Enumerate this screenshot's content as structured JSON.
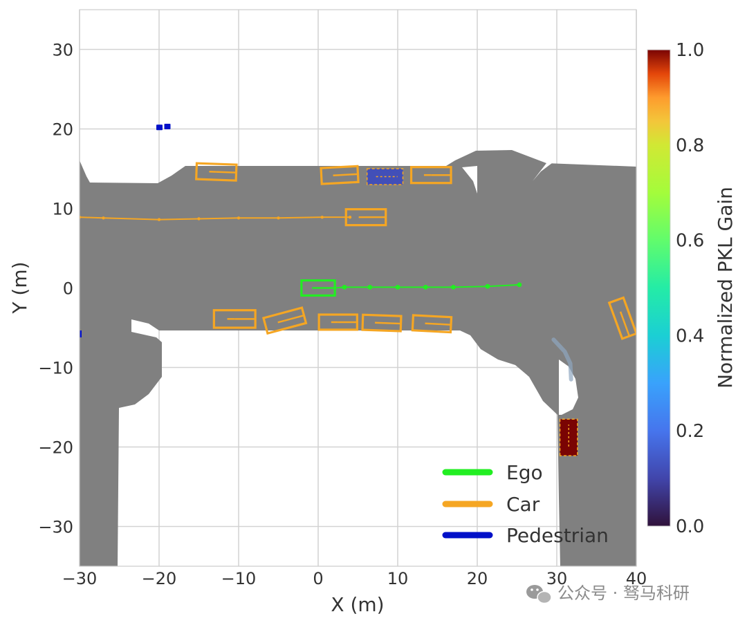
{
  "chart_data": {
    "type": "scatter",
    "xlabel": "X (m)",
    "ylabel": "Y (m)",
    "xlim": [
      -30,
      40
    ],
    "ylim": [
      -35,
      35
    ],
    "xticks": [
      -30,
      -20,
      -10,
      0,
      10,
      20,
      30,
      40
    ],
    "xtick_labels": [
      "−30",
      "−20",
      "−10",
      "0",
      "10",
      "20",
      "30",
      "40"
    ],
    "yticks": [
      30,
      20,
      10,
      0,
      -10,
      -20,
      -30
    ],
    "ytick_labels": [
      "30",
      "20",
      "10",
      "0",
      "−10",
      "−20",
      "−30"
    ],
    "grid": true,
    "legend_position": "lower-right",
    "legend": [
      {
        "label": "Ego",
        "color": "#22ee22"
      },
      {
        "label": "Car",
        "color": "#f5a623"
      },
      {
        "label": "Pedestrian",
        "color": "#0010c8"
      }
    ],
    "colorbar": {
      "label": "Normalized PKL Gain",
      "range": [
        0.0,
        1.0
      ],
      "ticks": [
        1.0,
        0.8,
        0.6,
        0.4,
        0.2,
        0.0
      ],
      "tick_labels": [
        "1.0",
        "0.8",
        "0.6",
        "0.4",
        "0.2",
        "0.0"
      ],
      "colormap": "turbo"
    },
    "ego": {
      "box": {
        "x": 0,
        "y": 0,
        "length": 4.2,
        "width": 1.9,
        "heading_deg": 0
      },
      "trajectory": [
        [
          3.3,
          0.1
        ],
        [
          6.5,
          0.1
        ],
        [
          10,
          0.1
        ],
        [
          13.5,
          0.1
        ],
        [
          17,
          0.1
        ],
        [
          21.3,
          0.2
        ],
        [
          25.3,
          0.4
        ]
      ]
    },
    "cars": [
      {
        "x": -12.8,
        "y": 14.6,
        "length": 5.0,
        "width": 2.0,
        "heading_deg": -2
      },
      {
        "x": 2.7,
        "y": 14.2,
        "length": 4.6,
        "width": 2.0,
        "heading_deg": 3
      },
      {
        "x": 14.2,
        "y": 14.2,
        "length": 5.0,
        "width": 2.0,
        "heading_deg": 0
      },
      {
        "x": 6,
        "y": 8.9,
        "length": 5.0,
        "width": 2.0,
        "heading_deg": 0
      },
      {
        "x": -10.5,
        "y": -3.9,
        "length": 5.2,
        "width": 2.2,
        "heading_deg": 0
      },
      {
        "x": -4.2,
        "y": -4.1,
        "length": 5.0,
        "width": 2.0,
        "heading_deg": 15
      },
      {
        "x": 2.5,
        "y": -4.3,
        "length": 4.8,
        "width": 1.9,
        "heading_deg": 0
      },
      {
        "x": 8,
        "y": -4.4,
        "length": 4.8,
        "width": 1.9,
        "heading_deg": -2
      },
      {
        "x": 14.3,
        "y": -4.5,
        "length": 4.8,
        "width": 1.9,
        "heading_deg": -3
      },
      {
        "x": 38.3,
        "y": -3.8,
        "length": 4.8,
        "width": 1.9,
        "heading_deg": -70
      }
    ],
    "car_trajectories": [
      {
        "points": [
          [
            -30,
            8.9
          ],
          [
            -27,
            8.8
          ],
          [
            -20,
            8.6
          ],
          [
            -15,
            8.7
          ],
          [
            -10,
            8.8
          ],
          [
            -5,
            8.8
          ],
          [
            0.5,
            8.9
          ],
          [
            4,
            8.9
          ]
        ]
      }
    ],
    "pedestrians": [
      {
        "x": -20,
        "y": 20.2
      },
      {
        "x": -19,
        "y": 20.3
      }
    ],
    "highlighted_objects": [
      {
        "class": "Pedestrian",
        "x": 8.4,
        "y": 14.0,
        "length": 4.5,
        "width": 2.0,
        "pkl_gain": 0.12
      },
      {
        "class": "Car",
        "x": 31.5,
        "y": -18.8,
        "length": 4.6,
        "width": 2.2,
        "pkl_gain": 1.0
      }
    ],
    "faint_track": [
      [
        29.6,
        -6.5
      ],
      [
        31.0,
        -8.0
      ],
      [
        31.7,
        -9.5
      ],
      [
        31.8,
        -11.5
      ]
    ]
  },
  "watermark": {
    "text": "公众号 · 驽马科研",
    "icon": "wechat-icon"
  },
  "colors": {
    "road": "#808080",
    "grid": "#d2d2d2",
    "ego": "#22ee22",
    "car": "#f5a623",
    "pedestrian": "#0010c8"
  }
}
